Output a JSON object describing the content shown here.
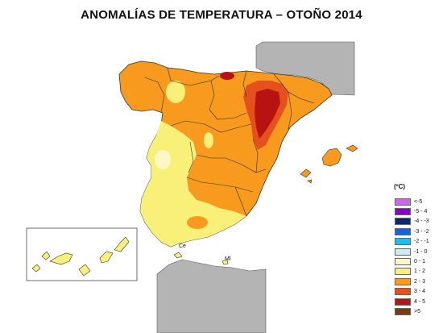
{
  "title": "ANOMALÍAS DE TEMPERATURA – OTOÑO 2014",
  "legend": {
    "unit": "(ºC)",
    "items": [
      {
        "label": "<-5",
        "color": "#cc66ee"
      },
      {
        "label": "-5 - 4",
        "color": "#8800cc"
      },
      {
        "label": "-4 - -3",
        "color": "#0a2a6e"
      },
      {
        "label": "-3 - -2",
        "color": "#1e5fd8"
      },
      {
        "label": "-2 - -1",
        "color": "#22bbee"
      },
      {
        "label": "-1 - 0",
        "color": "#cdeaf7"
      },
      {
        "label": "0 - 1",
        "color": "#fff7c4"
      },
      {
        "label": "1 - 2",
        "color": "#f9f07a"
      },
      {
        "label": "2 - 3",
        "color": "#f79a1e"
      },
      {
        "label": "3 - 4",
        "color": "#e4511c"
      },
      {
        "label": "4 - 5",
        "color": "#b81212"
      },
      {
        "label": ">5",
        "color": "#7a3b12"
      }
    ]
  },
  "labels": {
    "ceuta": "Ce",
    "melilla": "Ml"
  },
  "colors": {
    "neighbor": "#b4b4b4",
    "border": "#333333"
  }
}
